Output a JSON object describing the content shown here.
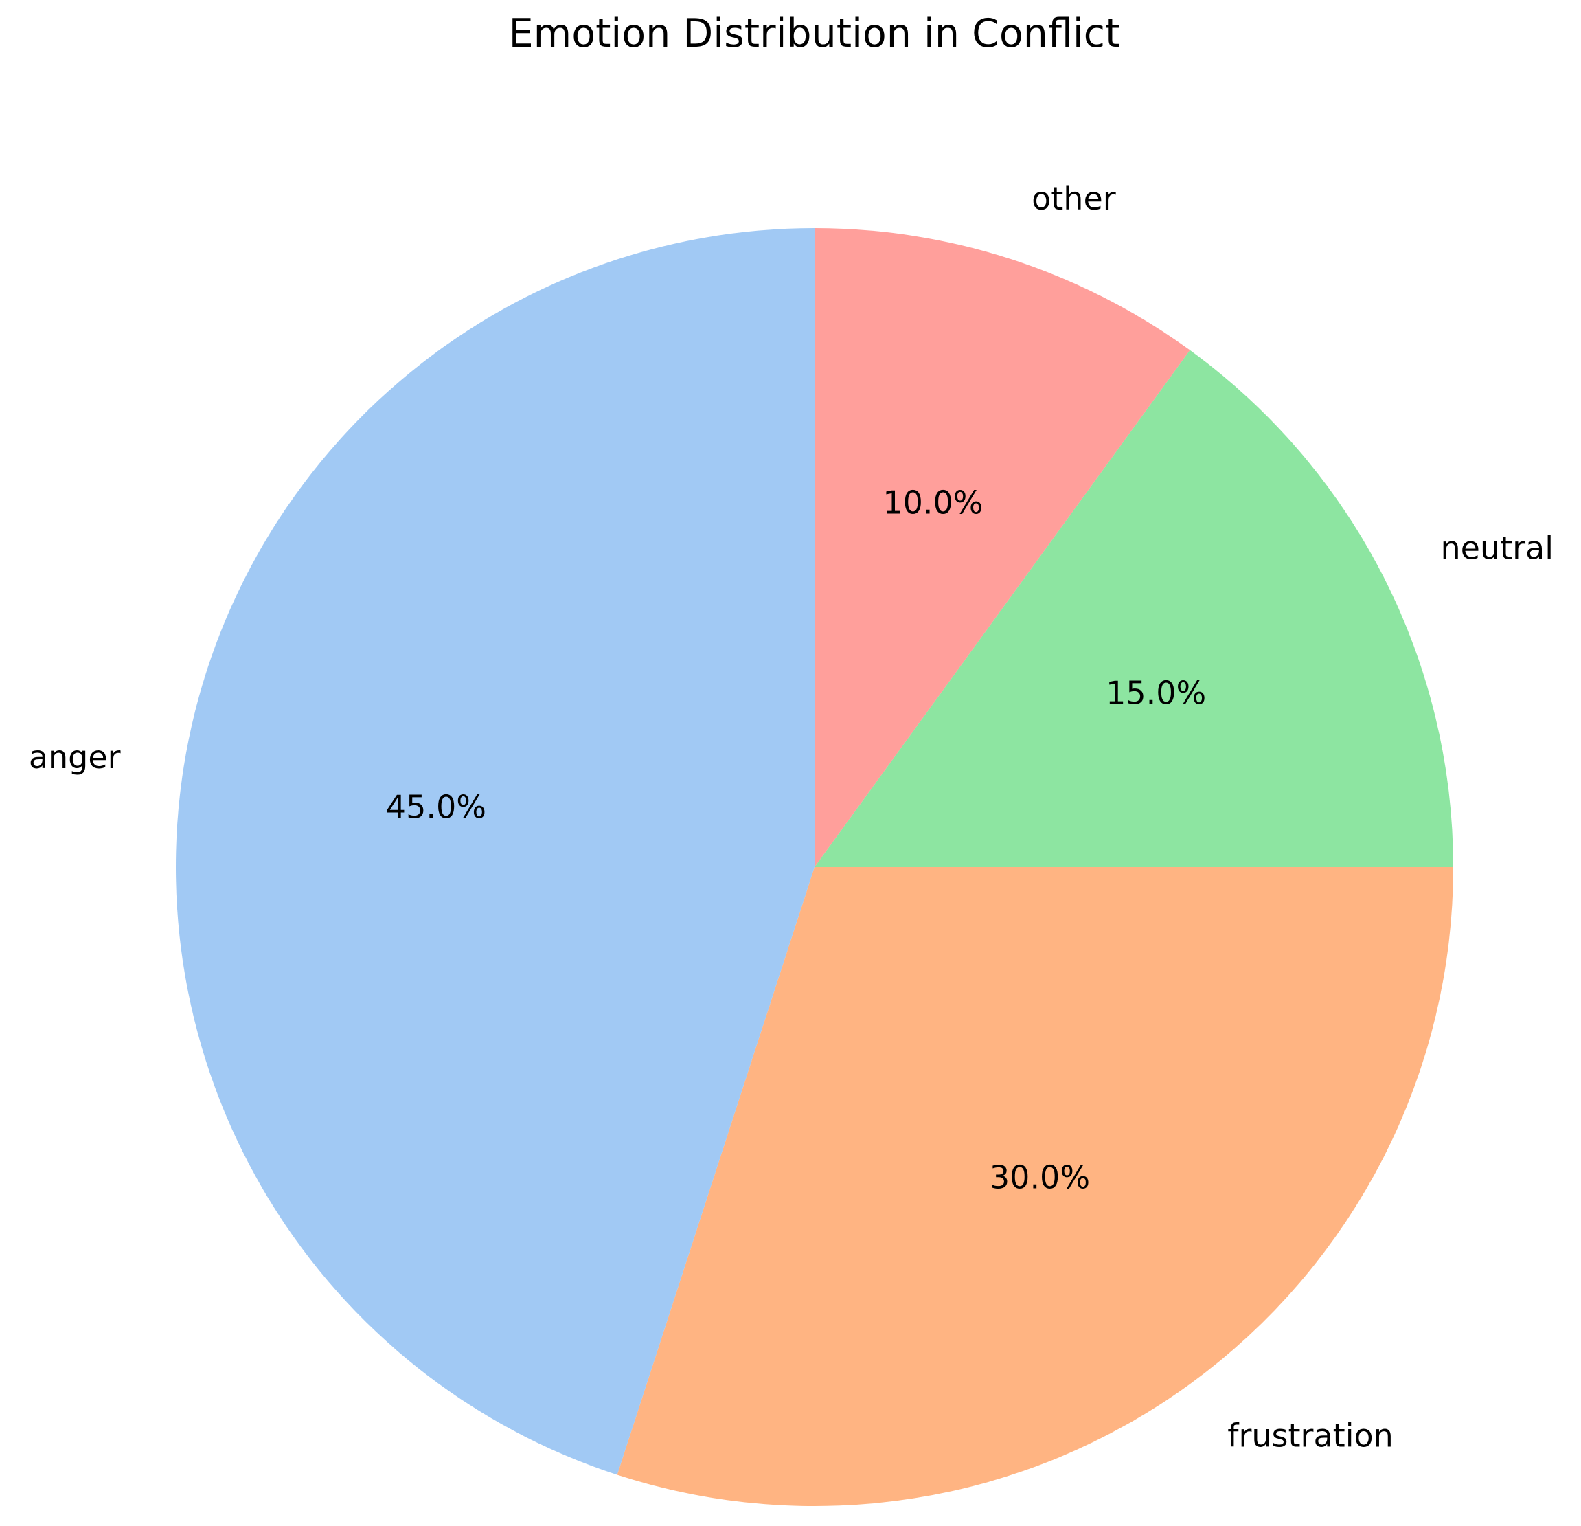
{
  "chart_data": {
    "type": "pie",
    "title": "Emotion Distribution in Conflict",
    "start_angle_deg": 90,
    "direction": "clockwise",
    "slices": [
      {
        "label": "other",
        "value": 10.0,
        "pct_text": "10.0%",
        "color": "#ff9f9b"
      },
      {
        "label": "neutral",
        "value": 15.0,
        "pct_text": "15.0%",
        "color": "#8de5a1"
      },
      {
        "label": "frustration",
        "value": 30.0,
        "pct_text": "30.0%",
        "color": "#ffb482"
      },
      {
        "label": "anger",
        "value": 45.0,
        "pct_text": "45.0%",
        "color": "#a1c9f4"
      }
    ],
    "legend": "none"
  }
}
